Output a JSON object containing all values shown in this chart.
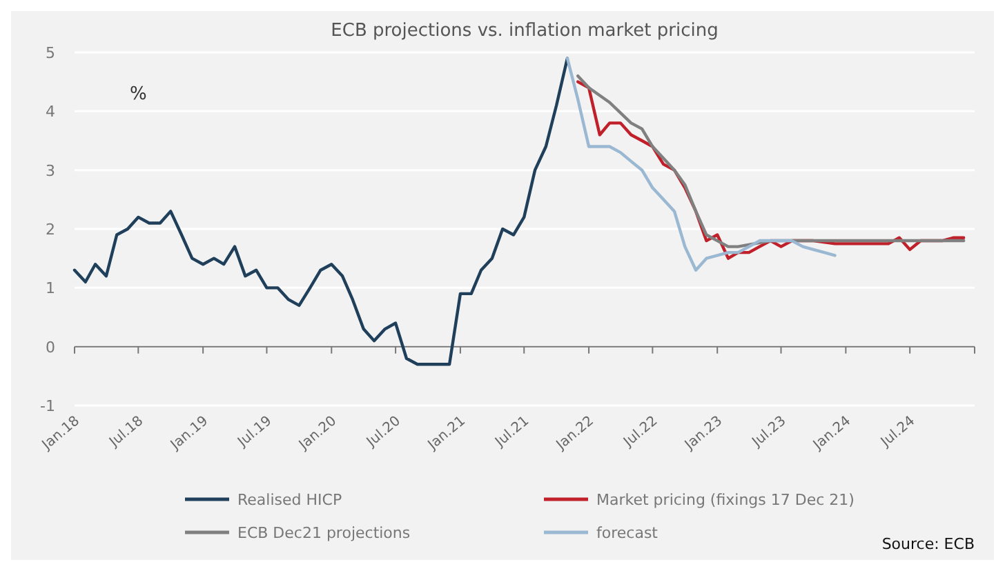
{
  "chart_data": {
    "type": "line",
    "title": "ECB projections vs. inflation market pricing",
    "xlim": [
      "2018-01",
      "2025-01"
    ],
    "xticks": [
      {
        "value": "2018-01",
        "label": "Jan.18"
      },
      {
        "value": "2018-07",
        "label": "Jul.18"
      },
      {
        "value": "2019-01",
        "label": "Jan.19"
      },
      {
        "value": "2019-07",
        "label": "Jul.19"
      },
      {
        "value": "2020-01",
        "label": "Jan.20"
      },
      {
        "value": "2020-07",
        "label": "Jul.20"
      },
      {
        "value": "2021-01",
        "label": "Jan.21"
      },
      {
        "value": "2021-07",
        "label": "Jul.21"
      },
      {
        "value": "2022-01",
        "label": "Jan.22"
      },
      {
        "value": "2022-07",
        "label": "Jul.22"
      },
      {
        "value": "2023-01",
        "label": "Jan.23"
      },
      {
        "value": "2023-07",
        "label": "Jul.23"
      },
      {
        "value": "2024-01",
        "label": "Jan.24"
      },
      {
        "value": "2024-07",
        "label": "Jul.24"
      },
      {
        "value": "2025-01",
        "label": null
      }
    ],
    "ylim": [
      -1,
      5
    ],
    "yticks": [
      -1,
      0,
      1,
      2,
      3,
      4,
      5
    ],
    "grid": "y",
    "legend": "bottom",
    "annotations": [
      "%",
      "Source: ECB"
    ],
    "series": [
      {
        "name": "Realised HICP",
        "color": "#1f3f5a",
        "x": [
          "2018-01",
          "2018-02",
          "2018-03",
          "2018-04",
          "2018-05",
          "2018-06",
          "2018-07",
          "2018-08",
          "2018-09",
          "2018-10",
          "2018-11",
          "2018-12",
          "2019-01",
          "2019-02",
          "2019-03",
          "2019-04",
          "2019-05",
          "2019-06",
          "2019-07",
          "2019-08",
          "2019-09",
          "2019-10",
          "2019-11",
          "2019-12",
          "2020-01",
          "2020-02",
          "2020-03",
          "2020-04",
          "2020-05",
          "2020-06",
          "2020-07",
          "2020-08",
          "2020-09",
          "2020-10",
          "2020-11",
          "2020-12",
          "2021-01",
          "2021-02",
          "2021-03",
          "2021-04",
          "2021-05",
          "2021-06",
          "2021-07",
          "2021-08",
          "2021-09",
          "2021-10",
          "2021-11"
        ],
        "values": [
          1.3,
          1.1,
          1.4,
          1.2,
          1.9,
          2.0,
          2.2,
          2.1,
          2.1,
          2.3,
          1.9,
          1.5,
          1.4,
          1.5,
          1.4,
          1.7,
          1.2,
          1.3,
          1.0,
          1.0,
          0.8,
          0.7,
          1.0,
          1.3,
          1.4,
          1.2,
          0.8,
          0.3,
          0.1,
          0.3,
          0.4,
          -0.2,
          -0.3,
          -0.3,
          -0.3,
          -0.3,
          0.9,
          0.9,
          1.3,
          1.5,
          2.0,
          1.9,
          2.2,
          3.0,
          3.4,
          4.1,
          4.9
        ]
      },
      {
        "name": "Market pricing (fixings 17 Dec 21)",
        "color": "#c0202a",
        "x": [
          "2021-12",
          "2022-01",
          "2022-02",
          "2022-03",
          "2022-04",
          "2022-05",
          "2022-06",
          "2022-07",
          "2022-08",
          "2022-09",
          "2022-10",
          "2022-11",
          "2022-12",
          "2023-01",
          "2023-02",
          "2023-03",
          "2023-04",
          "2023-05",
          "2023-06",
          "2023-07",
          "2023-08",
          "2023-09",
          "2023-10",
          "2023-12",
          "2024-03",
          "2024-05",
          "2024-06",
          "2024-07",
          "2024-08",
          "2024-09",
          "2024-10",
          "2024-11",
          "2024-12"
        ],
        "values": [
          4.5,
          4.4,
          3.6,
          3.8,
          3.8,
          3.6,
          3.5,
          3.4,
          3.1,
          3.0,
          2.7,
          2.3,
          1.8,
          1.9,
          1.5,
          1.6,
          1.6,
          1.7,
          1.8,
          1.7,
          1.8,
          1.8,
          1.8,
          1.75,
          1.75,
          1.75,
          1.85,
          1.65,
          1.8,
          1.8,
          1.8,
          1.85,
          1.85
        ]
      },
      {
        "name": "ECB Dec21 projections",
        "color": "#808080",
        "x": [
          "2021-12",
          "2022-01",
          "2022-03",
          "2022-05",
          "2022-06",
          "2022-07",
          "2022-08",
          "2022-09",
          "2022-10",
          "2022-11",
          "2022-12",
          "2023-01",
          "2023-02",
          "2023-03",
          "2023-06",
          "2023-09",
          "2024-03",
          "2024-09",
          "2024-12"
        ],
        "values": [
          4.6,
          4.4,
          4.15,
          3.8,
          3.7,
          3.4,
          3.2,
          3.0,
          2.75,
          2.3,
          1.9,
          1.8,
          1.7,
          1.7,
          1.8,
          1.8,
          1.8,
          1.8,
          1.8
        ]
      },
      {
        "name": "forecast",
        "color": "#9bb8d3",
        "x": [
          "2021-11",
          "2021-12",
          "2022-01",
          "2022-02",
          "2022-03",
          "2022-04",
          "2022-05",
          "2022-06",
          "2022-07",
          "2022-08",
          "2022-09",
          "2022-10",
          "2022-11",
          "2022-12",
          "2023-01",
          "2023-02",
          "2023-03",
          "2023-04",
          "2023-05",
          "2023-06",
          "2023-07",
          "2023-08",
          "2023-09",
          "2023-10",
          "2023-11",
          "2023-12"
        ],
        "values": [
          4.9,
          4.2,
          3.4,
          3.4,
          3.4,
          3.3,
          3.15,
          3.0,
          2.7,
          2.5,
          2.3,
          1.7,
          1.3,
          1.5,
          1.55,
          1.6,
          1.6,
          1.7,
          1.8,
          1.8,
          1.8,
          1.8,
          1.7,
          1.65,
          1.6,
          1.55
        ]
      }
    ]
  }
}
